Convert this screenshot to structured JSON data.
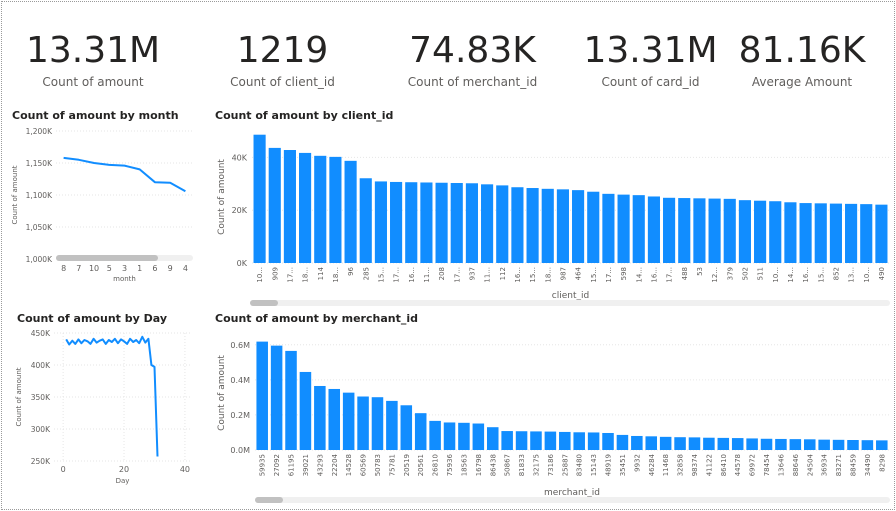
{
  "kpis": [
    {
      "value": "13.31M",
      "label": "Count of amount"
    },
    {
      "value": "1219",
      "label": "Count of client_id"
    },
    {
      "value": "74.83K",
      "label": "Count of merchant_id"
    },
    {
      "value": "13.31M",
      "label": "Count of card_id"
    },
    {
      "value": "81.16K",
      "label": "Average Amount"
    }
  ],
  "colors": {
    "series": "#118dff",
    "grid": "#e6e6e6",
    "axis_text": "#605e5c",
    "scroll_thumb": "#c1c1c1"
  },
  "chart_data": [
    {
      "type": "line",
      "title": "Count of amount by month",
      "xlabel": "month",
      "ylabel": "Count of amount",
      "categories": [
        "8",
        "7",
        "10",
        "5",
        "3",
        "1",
        "6",
        "9",
        "4"
      ],
      "values": [
        1158000,
        1155000,
        1150000,
        1147000,
        1146000,
        1140000,
        1120000,
        1119000,
        1106000
      ],
      "ylim": [
        1000000,
        1200000
      ],
      "yticks": [
        1000000,
        1050000,
        1100000,
        1150000,
        1200000
      ],
      "ytick_labels": [
        "1,000K",
        "1,050K",
        "1,100K",
        "1,150K",
        "1,200K"
      ],
      "grid": true
    },
    {
      "type": "bar",
      "title": "Count of amount by client_id",
      "xlabel": "client_id",
      "ylabel": "Count of amount",
      "categories": [
        "10...",
        "909",
        "17...",
        "18...",
        "114",
        "18...",
        "96",
        "285",
        "15...",
        "17...",
        "16...",
        "11...",
        "208",
        "17...",
        "937",
        "11...",
        "112",
        "16...",
        "15...",
        "18...",
        "987",
        "464",
        "15...",
        "17...",
        "598",
        "14...",
        "16...",
        "17...",
        "488",
        "53",
        "12...",
        "379",
        "502",
        "511",
        "10...",
        "14...",
        "16...",
        "15...",
        "852",
        "13...",
        "10...",
        "490"
      ],
      "values": [
        48600,
        43600,
        42800,
        41700,
        40600,
        40200,
        38700,
        32100,
        30900,
        30700,
        30600,
        30500,
        30400,
        30300,
        30200,
        29800,
        29400,
        28700,
        28400,
        28100,
        27900,
        27600,
        27000,
        26200,
        25900,
        25700,
        25200,
        24700,
        24600,
        24500,
        24400,
        24300,
        23800,
        23600,
        23400,
        23000,
        22700,
        22600,
        22500,
        22400,
        22300,
        22100
      ],
      "ylim": [
        0,
        50000
      ],
      "yticks": [
        0,
        20000,
        40000
      ],
      "ytick_labels": [
        "0K",
        "20K",
        "40K"
      ],
      "grid": true
    },
    {
      "type": "line",
      "title": "Count of amount by Day",
      "xlabel": "Day",
      "ylabel": "Count of amount",
      "x": [
        1,
        2,
        3,
        4,
        5,
        6,
        7,
        8,
        9,
        10,
        11,
        12,
        13,
        14,
        15,
        16,
        17,
        18,
        19,
        20,
        21,
        22,
        23,
        24,
        25,
        26,
        27,
        28,
        29,
        30,
        31
      ],
      "values": [
        440000,
        432000,
        438000,
        433000,
        440000,
        434000,
        439000,
        437000,
        433000,
        441000,
        435000,
        438000,
        440000,
        433000,
        439000,
        436000,
        441000,
        434000,
        440000,
        437000,
        433000,
        441000,
        436000,
        439000,
        434000,
        444000,
        435000,
        441000,
        400000,
        397000,
        257000
      ],
      "ylim": [
        250000,
        450000
      ],
      "yticks": [
        250000,
        300000,
        350000,
        400000,
        450000
      ],
      "ytick_labels": [
        "250K",
        "300K",
        "350K",
        "400K",
        "450K"
      ],
      "xlim": [
        -3,
        42
      ],
      "xticks": [
        0,
        20,
        40
      ],
      "xtick_labels": [
        "0",
        "20",
        "40"
      ],
      "grid": true
    },
    {
      "type": "bar",
      "title": "Count of amount by merchant_id",
      "xlabel": "merchant_id",
      "ylabel": "Count of amount",
      "categories": [
        "59935",
        "27092",
        "61195",
        "39021",
        "43293",
        "22204",
        "14528",
        "60569",
        "50783",
        "75781",
        "20519",
        "20561",
        "26810",
        "75936",
        "18563",
        "16798",
        "86438",
        "50867",
        "81833",
        "32175",
        "73186",
        "25887",
        "83480",
        "15143",
        "48919",
        "35451",
        "9932",
        "46284",
        "11468",
        "32858",
        "98374",
        "41122",
        "86410",
        "44578",
        "69972",
        "78454",
        "13646",
        "88646",
        "24504",
        "36934",
        "83271",
        "88459",
        "34490",
        "8298"
      ],
      "values": [
        618000,
        595000,
        565000,
        445000,
        365000,
        348000,
        327000,
        305000,
        301000,
        280000,
        255000,
        210000,
        166000,
        157000,
        155000,
        151000,
        130000,
        108000,
        107000,
        106000,
        105000,
        103000,
        101000,
        100000,
        97000,
        86000,
        80000,
        78000,
        75000,
        73000,
        72000,
        70000,
        69000,
        68000,
        66000,
        64000,
        63000,
        62000,
        61000,
        59000,
        58000,
        57000,
        56000,
        55000
      ],
      "ylim": [
        0,
        650000
      ],
      "yticks": [
        0,
        200000,
        400000,
        600000
      ],
      "ytick_labels": [
        "0.0M",
        "0.2M",
        "0.4M",
        "0.6M"
      ],
      "grid": true
    }
  ]
}
